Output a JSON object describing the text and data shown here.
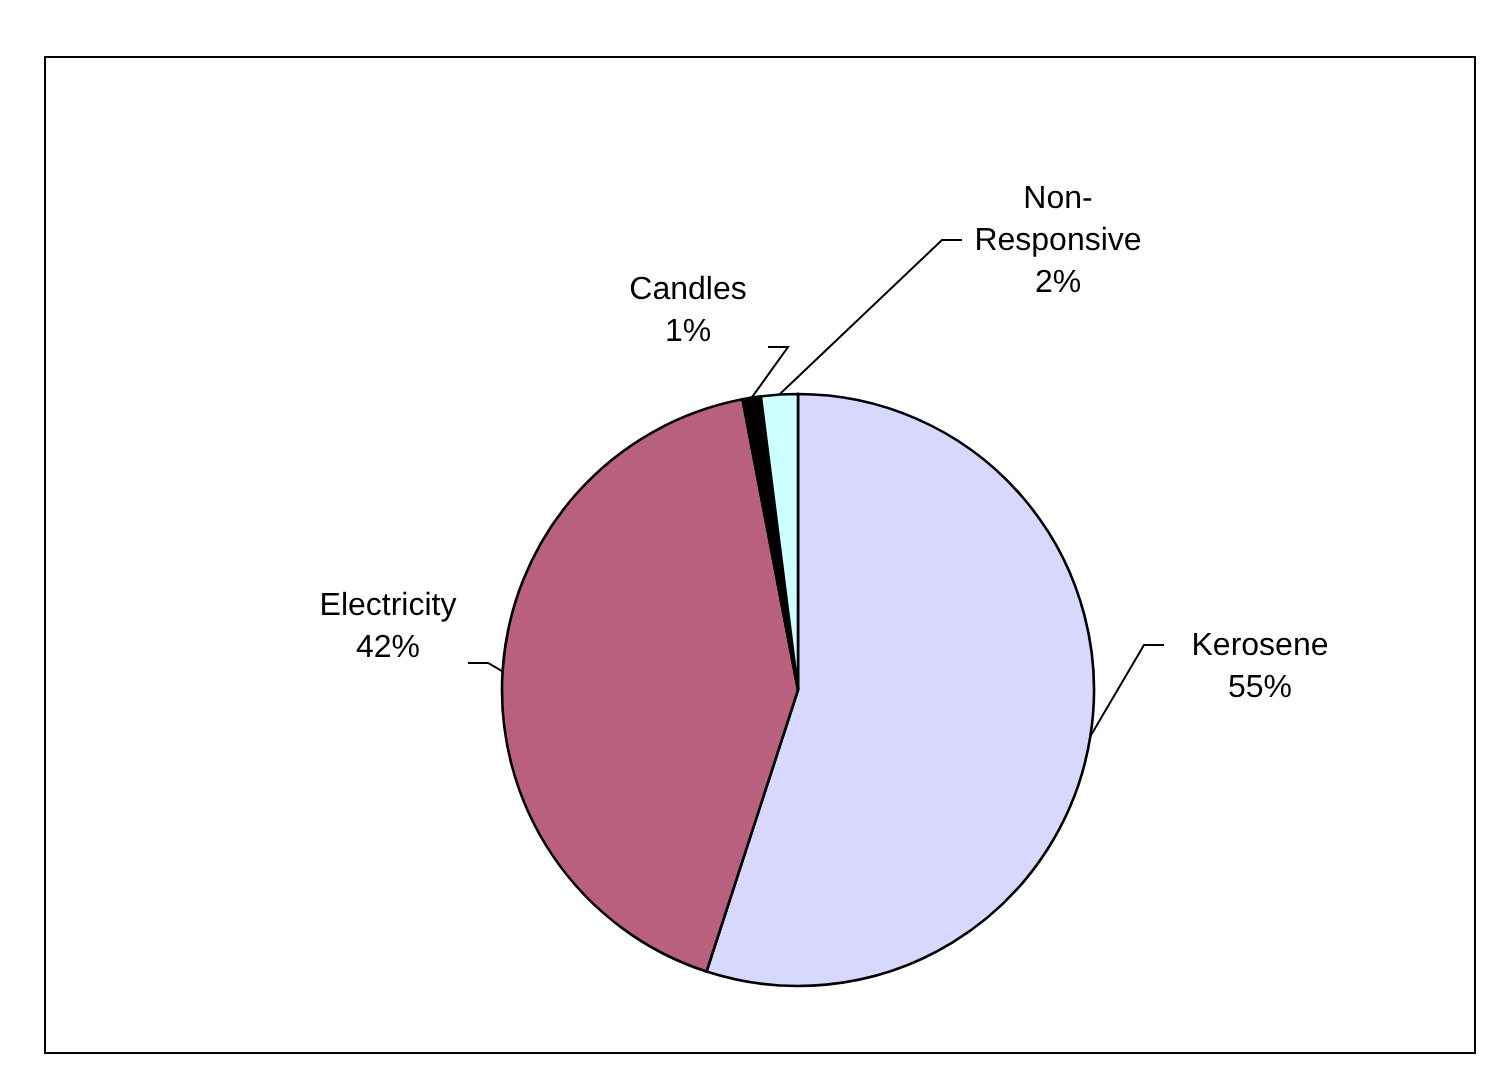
{
  "chart_data": {
    "type": "pie",
    "categories": [
      "Kerosene",
      "Electricity",
      "Candles",
      "Non-Responsive"
    ],
    "values": [
      55,
      42,
      1,
      2
    ],
    "colors": [
      "#d8d8ff",
      "#b8607e",
      "#000000",
      "#ccffff"
    ],
    "value_labels": [
      "55%",
      "42%",
      "1%",
      "2%"
    ]
  }
}
